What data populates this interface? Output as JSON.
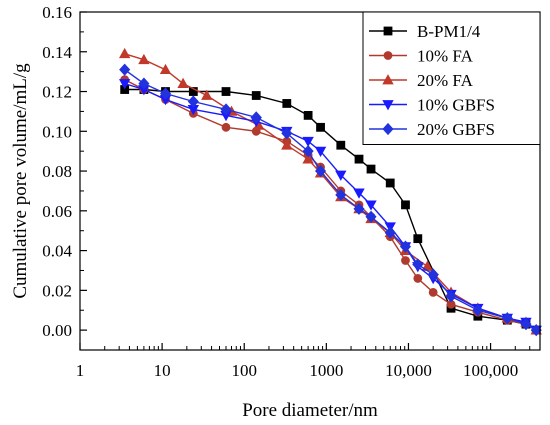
{
  "chart_data": {
    "type": "line",
    "title": "",
    "xlabel": "Pore diameter/nm",
    "ylabel": "Cumulative pore volume/mL/g",
    "xscale": "log",
    "xlim": [
      1,
      400000
    ],
    "ylim": [
      -0.01,
      0.16
    ],
    "x_ticks": [
      1,
      10,
      100,
      1000,
      10000,
      100000
    ],
    "x_tick_labels": [
      "1",
      "10",
      "100",
      "1000",
      "10,000",
      "100,000"
    ],
    "y_ticks": [
      0.0,
      0.02,
      0.04,
      0.06,
      0.08,
      0.1,
      0.12,
      0.14,
      0.16
    ],
    "y_tick_labels": [
      "0.00",
      "0.02",
      "0.04",
      "0.06",
      "0.08",
      "0.10",
      "0.12",
      "0.14",
      "0.16"
    ],
    "grid": false,
    "legend_position": "top-right",
    "series": [
      {
        "name": "B-PM1/4",
        "color": "#000000",
        "marker": "square",
        "x": [
          3.5,
          6,
          11,
          24,
          60,
          140,
          330,
          600,
          850,
          1500,
          2500,
          3500,
          6000,
          9200,
          13000,
          33000,
          70000,
          160000,
          270000,
          360000
        ],
        "y": [
          0.121,
          0.121,
          0.12,
          0.12,
          0.12,
          0.118,
          0.114,
          0.108,
          0.102,
          0.093,
          0.086,
          0.081,
          0.074,
          0.063,
          0.046,
          0.011,
          0.007,
          0.005,
          0.003,
          0.0
        ]
      },
      {
        "name": "10% FA",
        "color": "#b03a2e",
        "marker": "circle",
        "x": [
          3.5,
          6,
          11,
          24,
          60,
          140,
          330,
          600,
          850,
          1500,
          2500,
          3500,
          6000,
          9200,
          13000,
          20000,
          33000,
          70000,
          160000,
          270000,
          360000
        ],
        "y": [
          0.126,
          0.121,
          0.116,
          0.109,
          0.102,
          0.1,
          0.095,
          0.088,
          0.082,
          0.07,
          0.063,
          0.057,
          0.047,
          0.035,
          0.026,
          0.019,
          0.013,
          0.009,
          0.005,
          0.003,
          0.0
        ]
      },
      {
        "name": "20% FA",
        "color": "#c0392b",
        "marker": "triangle-up",
        "x": [
          3.5,
          6,
          11,
          18,
          35,
          70,
          150,
          330,
          600,
          850,
          1500,
          2500,
          3500,
          6000,
          9200,
          17000,
          33000,
          70000,
          160000,
          270000,
          360000
        ],
        "y": [
          0.139,
          0.136,
          0.131,
          0.124,
          0.118,
          0.11,
          0.103,
          0.093,
          0.086,
          0.079,
          0.067,
          0.061,
          0.056,
          0.049,
          0.04,
          0.032,
          0.019,
          0.011,
          0.006,
          0.004,
          0.0
        ]
      },
      {
        "name": "10% GBFS",
        "color": "#1a1aff",
        "marker": "triangle-down",
        "x": [
          3.5,
          6,
          11,
          24,
          60,
          140,
          330,
          600,
          850,
          1500,
          2500,
          3500,
          6000,
          9200,
          13000,
          20000,
          33000,
          70000,
          160000,
          270000,
          360000
        ],
        "y": [
          0.124,
          0.121,
          0.116,
          0.111,
          0.108,
          0.105,
          0.1,
          0.095,
          0.09,
          0.078,
          0.069,
          0.063,
          0.052,
          0.042,
          0.032,
          0.026,
          0.018,
          0.011,
          0.006,
          0.004,
          0.0
        ]
      },
      {
        "name": "20% GBFS",
        "color": "#2233dd",
        "marker": "diamond",
        "x": [
          3.5,
          6,
          11,
          24,
          60,
          140,
          330,
          600,
          850,
          1500,
          2500,
          3500,
          6000,
          9200,
          13000,
          20000,
          33000,
          70000,
          160000,
          270000,
          360000
        ],
        "y": [
          0.131,
          0.124,
          0.119,
          0.115,
          0.111,
          0.107,
          0.099,
          0.09,
          0.08,
          0.068,
          0.061,
          0.057,
          0.049,
          0.042,
          0.033,
          0.028,
          0.017,
          0.01,
          0.006,
          0.003,
          0.0
        ]
      }
    ]
  }
}
